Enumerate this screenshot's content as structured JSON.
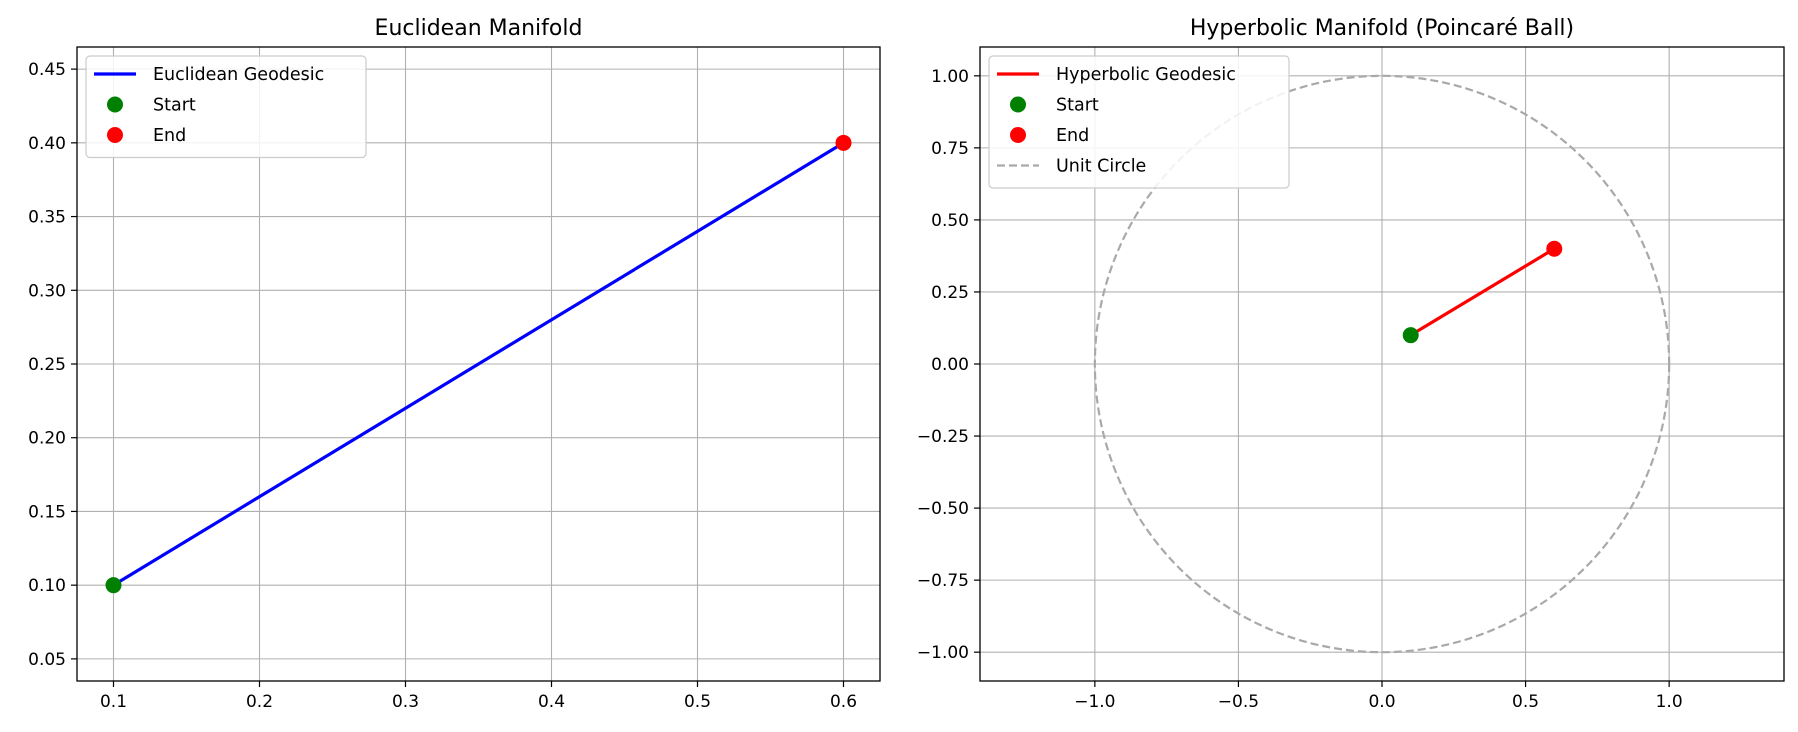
{
  "chart_data": [
    {
      "type": "line",
      "title": "Euclidean Manifold",
      "xlabel": "",
      "ylabel": "",
      "xlim": [
        0.075,
        0.625
      ],
      "ylim": [
        0.035,
        0.465
      ],
      "xticks": [
        0.1,
        0.2,
        0.3,
        0.4,
        0.5,
        0.6
      ],
      "xtick_labels": [
        "0.1",
        "0.2",
        "0.3",
        "0.4",
        "0.5",
        "0.6"
      ],
      "yticks": [
        0.05,
        0.1,
        0.15,
        0.2,
        0.25,
        0.3,
        0.35,
        0.4,
        0.45
      ],
      "ytick_labels": [
        "0.05",
        "0.10",
        "0.15",
        "0.20",
        "0.25",
        "0.30",
        "0.35",
        "0.40",
        "0.45"
      ],
      "grid": true,
      "legend_position": "top-left",
      "series": [
        {
          "name": "Euclidean Geodesic",
          "kind": "line",
          "color": "#0000ff",
          "x": [
            0.1,
            0.6
          ],
          "y": [
            0.1,
            0.4
          ]
        },
        {
          "name": "Start",
          "kind": "marker",
          "color": "#008000",
          "x": [
            0.1
          ],
          "y": [
            0.1
          ]
        },
        {
          "name": "End",
          "kind": "marker",
          "color": "#ff0000",
          "x": [
            0.6
          ],
          "y": [
            0.4
          ]
        }
      ]
    },
    {
      "type": "line",
      "title": "Hyperbolic Manifold (Poincaré Ball)",
      "xlabel": "",
      "ylabel": "",
      "xlim": [
        -1.4,
        1.4
      ],
      "ylim": [
        -1.1,
        1.1
      ],
      "xticks": [
        -1.0,
        -0.5,
        0.0,
        0.5,
        1.0
      ],
      "xtick_labels": [
        "−1.0",
        "−0.5",
        "0.0",
        "0.5",
        "1.0"
      ],
      "yticks": [
        -1.0,
        -0.75,
        -0.5,
        -0.25,
        0.0,
        0.25,
        0.5,
        0.75,
        1.0
      ],
      "ytick_labels": [
        "−1.00",
        "−0.75",
        "−0.50",
        "−0.25",
        "0.00",
        "0.25",
        "0.50",
        "0.75",
        "1.00"
      ],
      "grid": true,
      "legend_position": "top-left",
      "series": [
        {
          "name": "Hyperbolic Geodesic",
          "kind": "line",
          "color": "#ff0000",
          "x": [
            0.1,
            0.6
          ],
          "y": [
            0.1,
            0.4
          ]
        },
        {
          "name": "Start",
          "kind": "marker",
          "color": "#008000",
          "x": [
            0.1
          ],
          "y": [
            0.1
          ]
        },
        {
          "name": "End",
          "kind": "marker",
          "color": "#ff0000",
          "x": [
            0.6
          ],
          "y": [
            0.4
          ]
        },
        {
          "name": "Unit Circle",
          "kind": "circle",
          "color": "#a9a9a9",
          "center": [
            0,
            0
          ],
          "radius": 1.0
        }
      ]
    }
  ]
}
